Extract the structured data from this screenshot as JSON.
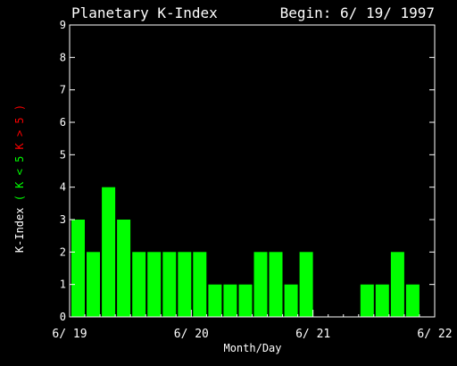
{
  "chart_data": {
    "type": "bar",
    "title": "Planetary K-Index",
    "begin_label": "Begin: 6/ 19/ 1997",
    "xlabel": "Month/Day",
    "ylabel_main": "K-Index",
    "ylabel_low": "( K < 5",
    "ylabel_high": "K > 5 )",
    "ylim": [
      0,
      9
    ],
    "yticks": [
      "0",
      "1",
      "2",
      "3",
      "4",
      "5",
      "6",
      "7",
      "8",
      "9"
    ],
    "xticks": [
      "6/ 19",
      "6/ 20",
      "6/ 21",
      "6/ 22"
    ],
    "intervals_per_day": 8,
    "total_intervals": 24,
    "values": [
      3,
      2,
      4,
      3,
      2,
      2,
      2,
      2,
      2,
      1,
      1,
      1,
      2,
      2,
      1,
      2,
      0,
      0,
      0,
      1,
      1,
      2,
      1,
      null
    ],
    "colors": {
      "low": "#00ff00",
      "high": "#ff0000",
      "axis": "#ffffff",
      "background": "#000000"
    }
  }
}
